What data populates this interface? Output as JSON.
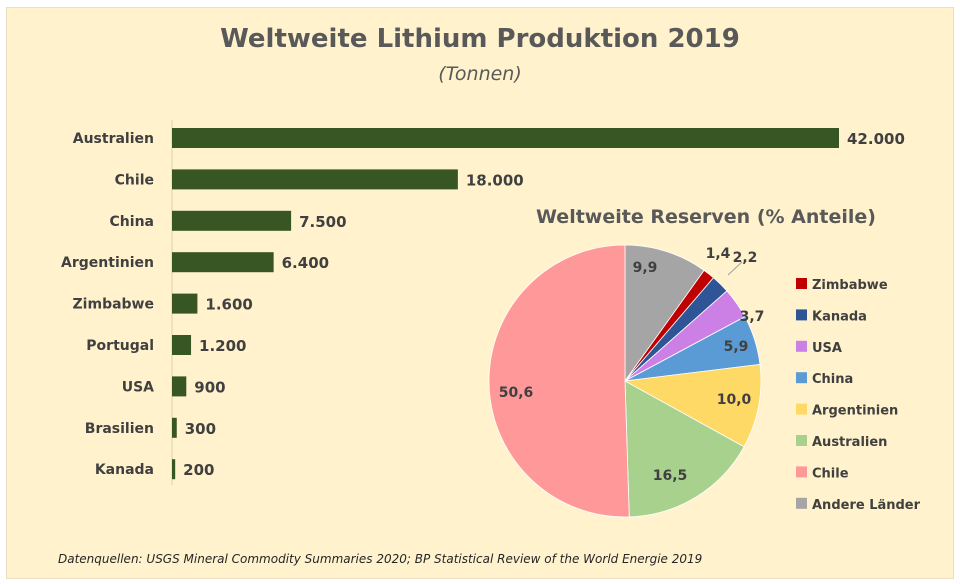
{
  "chart_data": [
    {
      "type": "bar",
      "orientation": "horizontal",
      "title": "Weltweite Lithium Produktion 2019",
      "subtitle": "(Tonnen)",
      "categories": [
        "Australien",
        "Chile",
        "China",
        "Argentinien",
        "Zimbabwe",
        "Portugal",
        "USA",
        "Brasilien",
        "Kanada"
      ],
      "values": [
        42000,
        18000,
        7500,
        6400,
        1600,
        1200,
        900,
        300,
        200
      ],
      "data_labels": [
        "42.000",
        "18.000",
        "7.500",
        "6.400",
        "1.600",
        "1.200",
        "900",
        "300",
        "200"
      ],
      "bar_color": "#375623",
      "grid": false
    },
    {
      "type": "pie",
      "title": "Weltweite Reserven (% Anteile)",
      "categories": [
        "Andere Länder",
        "Zimbabwe",
        "Kanada",
        "USA",
        "China",
        "Argentinien",
        "Australien",
        "Chile"
      ],
      "values": [
        9.9,
        1.4,
        2.2,
        3.7,
        5.9,
        10.0,
        16.5,
        50.6
      ],
      "data_labels": [
        "9,9",
        "1,4",
        "2,2",
        "3,7",
        "5,9",
        "10,0",
        "16,5",
        "50,6"
      ],
      "colors": [
        "#A5A5A5",
        "#C00000",
        "#2F5597",
        "#CC80E6",
        "#5B9BD5",
        "#FFD966",
        "#A9D18E",
        "#FF9999"
      ],
      "legend": [
        "Zimbabwe",
        "Kanada",
        "USA",
        "China",
        "Argentinien",
        "Australien",
        "Chile",
        "Andere Länder"
      ],
      "legend_position": "right"
    }
  ],
  "footer": "Datenquellen: USGS Mineral Commodity Summaries 2020; BP Statistical Review of the World Energie 2019",
  "colors": {
    "background": "#FFF2CC",
    "title": "#595959"
  }
}
